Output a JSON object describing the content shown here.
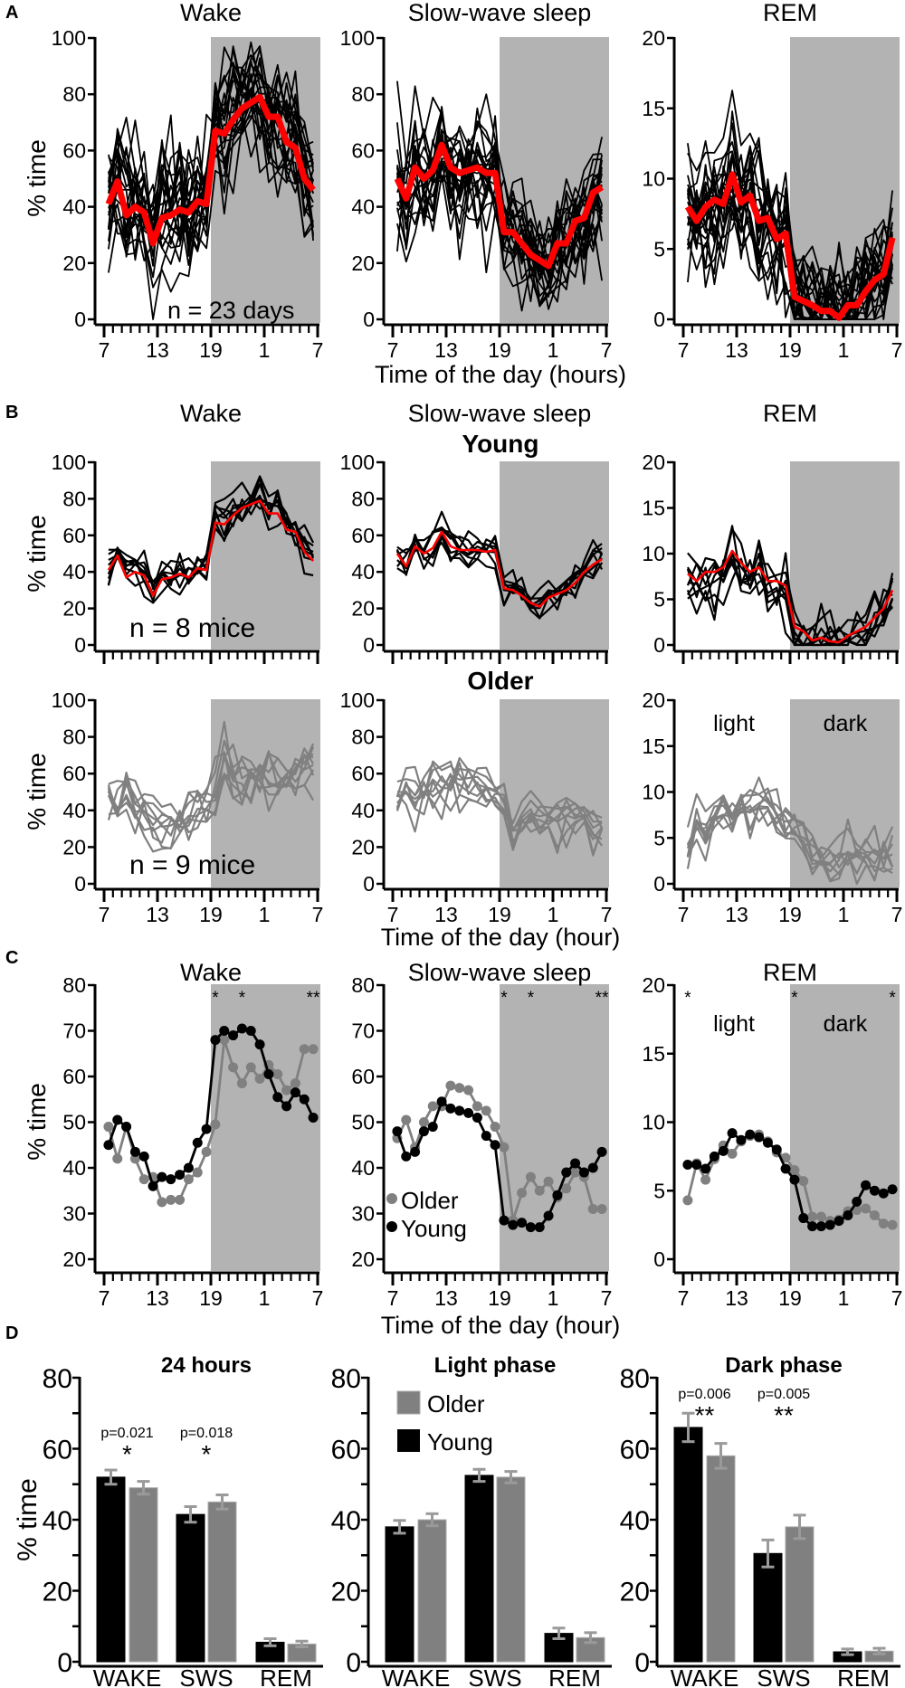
{
  "figure": {
    "panel_labels": [
      "A",
      "B",
      "C",
      "D"
    ],
    "ylabel": "% time",
    "xlabel_A": "Time of the day (hours)",
    "xlabel_B": "Time of the day (hour)",
    "xlabel_C": "Time of the day (hour)",
    "x_ticks": [
      "7",
      "13",
      "19",
      "1",
      "7"
    ],
    "group_young": "Young",
    "group_older": "Older",
    "light_label": "light",
    "dark_label": "dark",
    "colors": {
      "young": "#000000",
      "older": "#808080",
      "mean": "#ff0000",
      "dark_phase": "#b3b3b3",
      "error_bar": "#9a9a9a"
    }
  },
  "chart_data": {
    "A": [
      {
        "type": "line",
        "title": "Wake",
        "ylim": [
          0,
          100
        ],
        "yticks": [
          0,
          20,
          40,
          60,
          80,
          100
        ],
        "n_traces": 23,
        "trace_spread": 13,
        "annotation": "n = 23 days",
        "mean": [
          41,
          49,
          37,
          40,
          38,
          27,
          36,
          37,
          39,
          38,
          42,
          41,
          67,
          66,
          71,
          75,
          77,
          79,
          72,
          72,
          63,
          61,
          50,
          46
        ]
      },
      {
        "type": "line",
        "title": "Slow-wave sleep",
        "ylim": [
          0,
          100
        ],
        "yticks": [
          0,
          20,
          40,
          60,
          80,
          100
        ],
        "n_traces": 23,
        "trace_spread": 11,
        "mean": [
          50,
          43,
          54,
          50,
          53,
          62,
          54,
          52,
          53,
          54,
          52,
          52,
          31,
          31,
          27,
          23,
          21,
          19,
          27,
          27,
          35,
          36,
          45,
          47
        ]
      },
      {
        "type": "line",
        "title": "REM",
        "ylim": [
          0,
          20
        ],
        "yticks": [
          0,
          5,
          10,
          15,
          20
        ],
        "n_traces": 23,
        "trace_spread": 2.6,
        "mean": [
          8,
          7,
          8,
          8.5,
          8.2,
          10.3,
          8.3,
          8.8,
          7,
          7.2,
          5.7,
          6.1,
          1.6,
          1.3,
          1,
          0.6,
          0.6,
          0.1,
          1,
          1,
          2,
          2.8,
          3.2,
          5.8
        ]
      }
    ],
    "B_young": [
      {
        "type": "line",
        "title": "Wake",
        "ylim": [
          0,
          100
        ],
        "yticks": [
          0,
          20,
          40,
          60,
          80,
          100
        ],
        "n_traces": 8,
        "trace_spread": 7,
        "annotation": "n = 8 mice",
        "mean": [
          41,
          49,
          37,
          40,
          38,
          27,
          36,
          37,
          39,
          37,
          42,
          41,
          67,
          66,
          71,
          75,
          77,
          79,
          72,
          72,
          63,
          62,
          51,
          46
        ]
      },
      {
        "type": "line",
        "title": "Slow-wave sleep",
        "ylim": [
          0,
          100
        ],
        "yticks": [
          0,
          20,
          40,
          60,
          80,
          100
        ],
        "n_traces": 8,
        "trace_spread": 6,
        "mean": [
          50,
          43,
          54,
          50,
          53,
          62,
          54,
          52,
          52,
          52,
          51,
          52,
          31,
          30,
          27,
          23,
          21,
          26,
          28,
          30,
          34,
          40,
          44,
          47
        ]
      },
      {
        "type": "line",
        "title": "REM",
        "ylim": [
          0,
          20
        ],
        "yticks": [
          0,
          5,
          10,
          15,
          20
        ],
        "n_traces": 8,
        "trace_spread": 2.2,
        "mean": [
          7.8,
          7,
          8,
          8,
          8.5,
          10.3,
          9,
          8,
          8.5,
          7,
          7,
          6.5,
          2,
          1.5,
          0.5,
          0.8,
          0.4,
          0.3,
          1,
          1.5,
          2,
          3,
          4,
          6
        ]
      }
    ],
    "B_older": [
      {
        "type": "line",
        "title": "Wake",
        "ylim": [
          0,
          100
        ],
        "yticks": [
          0,
          20,
          40,
          60,
          80,
          100
        ],
        "n_traces": 9,
        "trace_spread": 9,
        "annotation": "n = 9 mice",
        "mean": [
          49,
          42,
          49,
          42,
          37,
          38,
          32,
          33,
          33,
          37,
          39,
          43,
          49,
          68,
          62,
          59,
          62,
          60,
          63,
          60,
          57,
          59,
          66,
          66
        ]
      },
      {
        "type": "line",
        "title": "Slow-wave sleep",
        "ylim": [
          0,
          100
        ],
        "yticks": [
          0,
          20,
          40,
          60,
          80,
          100
        ],
        "n_traces": 9,
        "trace_spread": 7,
        "mean": [
          46,
          50,
          44,
          50,
          53,
          53,
          58,
          57,
          57,
          53,
          53,
          49,
          44,
          28,
          35,
          38,
          35,
          37,
          33,
          36,
          39,
          38,
          31,
          31
        ]
      },
      {
        "type": "line",
        "title": "REM",
        "ylim": [
          0,
          20
        ],
        "yticks": [
          0,
          5,
          10,
          15,
          20
        ],
        "n_traces": 9,
        "trace_spread": 1.6,
        "mean": [
          4.3,
          7,
          5.8,
          7.3,
          8.3,
          7.7,
          8.6,
          9,
          9.1,
          8.6,
          7.8,
          7.4,
          6.5,
          5.7,
          3.1,
          3.1,
          2.8,
          2.9,
          3.5,
          3.6,
          3.7,
          3.2,
          2.6,
          2.5
        ]
      }
    ],
    "C": [
      {
        "type": "line",
        "title": "Wake",
        "ylim": [
          20,
          80
        ],
        "yticks": [
          20,
          30,
          40,
          50,
          60,
          70,
          80
        ],
        "series": [
          {
            "name": "Older",
            "values": [
              49,
              42,
              49,
              42,
              37.5,
              38,
              32.5,
              33,
              33,
              37.5,
              39,
              43.5,
              49.5,
              68,
              62,
              58.5,
              62,
              59.5,
              62.5,
              60.5,
              57,
              58.5,
              66,
              66
            ]
          },
          {
            "name": "Young",
            "values": [
              45,
              50.5,
              49,
              43.5,
              42.5,
              36,
              38,
              37.5,
              38.5,
              40,
              45.5,
              48.5,
              68,
              70,
              69,
              70.5,
              70,
              67,
              60.5,
              55.5,
              53.5,
              56.5,
              55,
              51
            ]
          }
        ],
        "stars": [
          {
            "point": 12,
            "text": "*"
          },
          {
            "point": 15,
            "text": "*"
          },
          {
            "point": 23,
            "text": "**"
          }
        ]
      },
      {
        "type": "line",
        "title": "Slow-wave sleep",
        "ylim": [
          20,
          80
        ],
        "yticks": [
          20,
          30,
          40,
          50,
          60,
          70,
          80
        ],
        "series": [
          {
            "name": "Older",
            "values": [
              46.5,
              50.5,
              44.5,
              50,
              53.5,
              53.5,
              58,
              57.5,
              57,
              53.5,
              52.5,
              49,
              44.5,
              28.5,
              34.5,
              38,
              35,
              37,
              33.5,
              35.5,
              39,
              38,
              31,
              31
            ]
          },
          {
            "name": "Young",
            "values": [
              48,
              42.5,
              43.5,
              48,
              49,
              54.5,
              53,
              52.5,
              52,
              51,
              47,
              45,
              28.5,
              27.5,
              28,
              27,
              27,
              29.5,
              34,
              39,
              41,
              39,
              40,
              43.5
            ]
          }
        ],
        "stars": [
          {
            "point": 12,
            "text": "*"
          },
          {
            "point": 15,
            "text": "*"
          },
          {
            "point": 23,
            "text": "**"
          }
        ]
      },
      {
        "type": "line",
        "title": "REM",
        "ylim": [
          0,
          20
        ],
        "yticks": [
          0,
          5,
          10,
          15,
          20
        ],
        "series": [
          {
            "name": "Older",
            "values": [
              4.3,
              7,
              5.8,
              7.3,
              8.3,
              7.7,
              8.6,
              9,
              9.1,
              8.6,
              7.8,
              7.4,
              6.5,
              5.7,
              3.1,
              3.1,
              2.8,
              2.9,
              3.5,
              3.6,
              3.7,
              3.2,
              2.6,
              2.5
            ]
          },
          {
            "name": "Young",
            "values": [
              6.9,
              6.9,
              6.6,
              7.5,
              7.9,
              9.2,
              8.7,
              9.1,
              8.9,
              8.5,
              8.0,
              6.6,
              5.8,
              3.0,
              2.4,
              2.4,
              2.5,
              2.8,
              3.2,
              4.2,
              5.4,
              5.0,
              4.8,
              5.1
            ]
          }
        ],
        "stars": [
          {
            "point": 0,
            "text": "*"
          },
          {
            "point": 12,
            "text": "*"
          },
          {
            "point": 23,
            "text": "*"
          }
        ]
      }
    ],
    "D": [
      {
        "type": "bar",
        "title": "24 hours",
        "ylim": [
          0,
          80
        ],
        "yticks": [
          0,
          20,
          40,
          60,
          80
        ],
        "categories": [
          "WAKE",
          "SWS",
          "REM"
        ],
        "series": [
          {
            "name": "Young",
            "values": [
              52,
              41.5,
              5.5
            ],
            "sem": [
              2,
              2.2,
              1
            ]
          },
          {
            "name": "Older",
            "values": [
              49,
              45,
              5
            ],
            "sem": [
              1.8,
              2,
              0.8
            ]
          }
        ],
        "significance": [
          {
            "category": 0,
            "p": "p=0.021",
            "stars": "*"
          },
          {
            "category": 1,
            "p": "p=0.018",
            "stars": "*"
          }
        ]
      },
      {
        "type": "bar",
        "title": "Light phase",
        "ylim": [
          0,
          80
        ],
        "yticks": [
          0,
          20,
          40,
          60,
          80
        ],
        "categories": [
          "WAKE",
          "SWS",
          "REM"
        ],
        "series": [
          {
            "name": "Young",
            "values": [
              38,
              52.5,
              8
            ],
            "sem": [
              1.8,
              1.7,
              1.5
            ]
          },
          {
            "name": "Older",
            "values": [
              40,
              52,
              6.8
            ],
            "sem": [
              1.7,
              1.6,
              1.4
            ]
          }
        ],
        "legend": [
          "Older",
          "Young"
        ],
        "significance": []
      },
      {
        "type": "bar",
        "title": "Dark phase",
        "ylim": [
          0,
          80
        ],
        "yticks": [
          0,
          20,
          40,
          60,
          80
        ],
        "categories": [
          "WAKE",
          "SWS",
          "REM"
        ],
        "series": [
          {
            "name": "Young",
            "values": [
              66,
              30.5,
              2.8
            ],
            "sem": [
              4,
              3.8,
              0.8
            ]
          },
          {
            "name": "Older",
            "values": [
              58,
              38,
              3
            ],
            "sem": [
              3.5,
              3.3,
              0.8
            ]
          }
        ],
        "significance": [
          {
            "category": 0,
            "p": "p=0.006",
            "stars": "**"
          },
          {
            "category": 1,
            "p": "p=0.005",
            "stars": "**"
          }
        ]
      }
    ]
  }
}
